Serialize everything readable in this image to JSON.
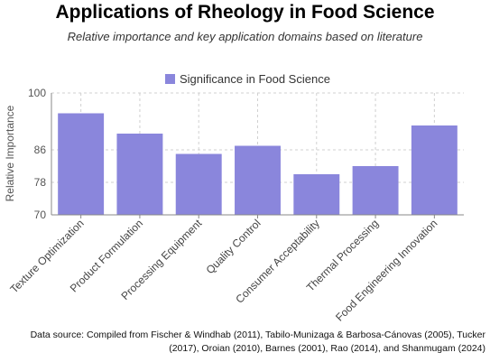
{
  "chart_data": {
    "type": "bar",
    "title": "Applications of Rheology in Food Science",
    "subtitle": "Relative importance and key application domains based on literature",
    "xlabel": "",
    "ylabel": "Relative Importance",
    "ylim": [
      70,
      100
    ],
    "yticks": [
      70,
      78,
      86,
      100
    ],
    "grid": true,
    "legend_position": "top-center",
    "categories": [
      "Texture Optimization",
      "Product Formulation",
      "Processing Equipment",
      "Quality Control",
      "Consumer Acceptability",
      "Thermal Processing",
      "Food Engineering Innovation"
    ],
    "series": [
      {
        "name": "Significance in Food Science",
        "values": [
          95,
          90,
          85,
          87,
          80,
          82,
          92
        ],
        "color": "#8a86dc"
      }
    ],
    "source": "Data source: Compiled from Fischer & Windhab (2011), Tabilo-Munizaga & Barbosa-Cánovas (2005), Tucker (2017), Oroian (2010), Barnes (2001), Rao (2014), and Shanmugam (2024)"
  }
}
